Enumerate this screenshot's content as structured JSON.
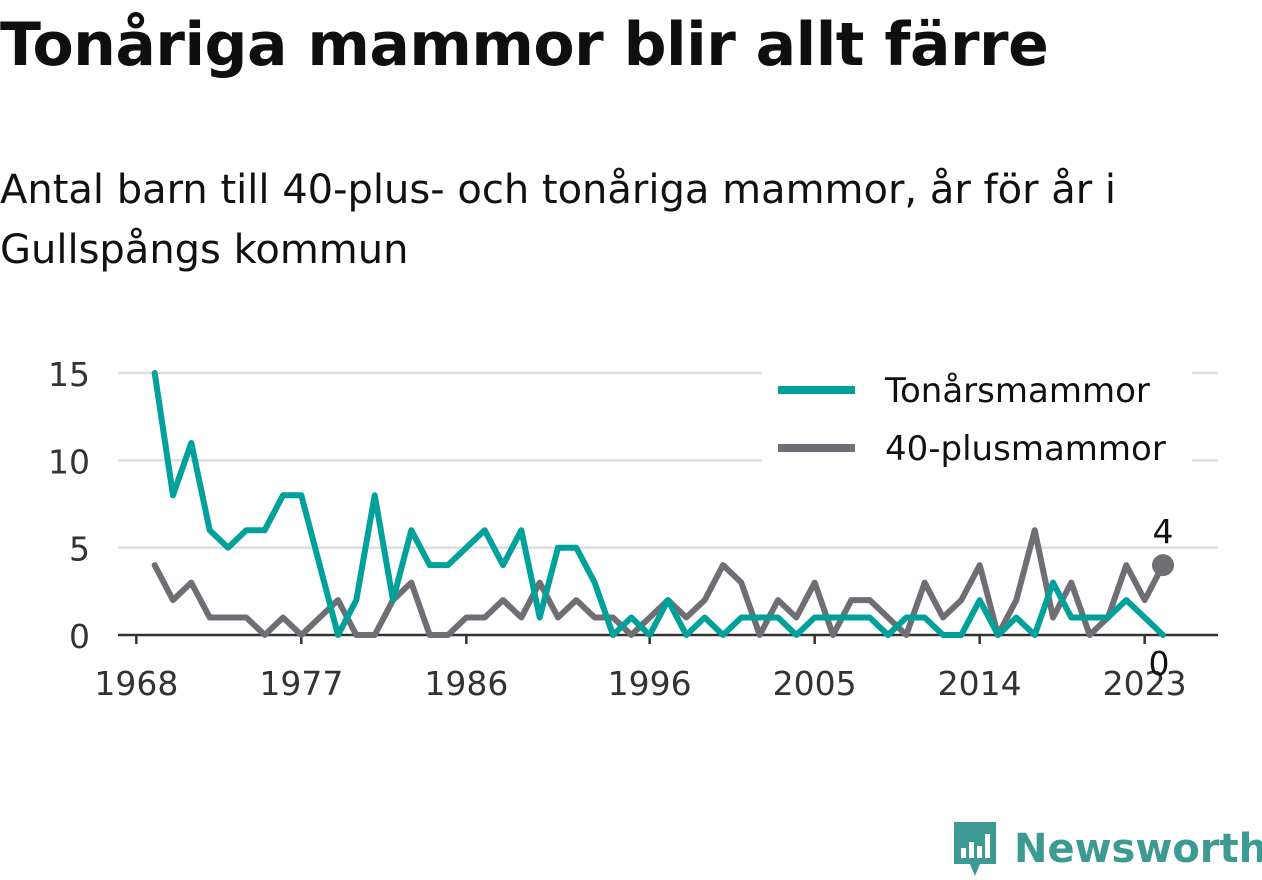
{
  "header": {
    "title": "Tonåriga mammor blir allt färre",
    "subtitle": "Antal barn till 40-plus- och tonåriga mammor, år för år i Gullspångs kommun"
  },
  "branding": {
    "name": "Newsworthy",
    "icon": "newsworthy-logo-icon",
    "color": "#3d9a93"
  },
  "chart_data": {
    "type": "line",
    "title": "Tonåriga mammor blir allt färre",
    "subtitle": "Antal barn till 40-plus- och tonåriga mammor, år för år i Gullspångs kommun",
    "xlabel": "",
    "ylabel": "",
    "x_ticks": [
      "1968",
      "1977",
      "1986",
      "1996",
      "2005",
      "2014",
      "2023"
    ],
    "y_ticks": [
      "0",
      "5",
      "10",
      "15"
    ],
    "xlim": [
      1967,
      2027
    ],
    "ylim": [
      0,
      15
    ],
    "grid": true,
    "legend_position": "top-right",
    "x": [
      1969,
      1970,
      1971,
      1972,
      1973,
      1974,
      1975,
      1976,
      1977,
      1978,
      1979,
      1980,
      1981,
      1982,
      1983,
      1984,
      1985,
      1986,
      1987,
      1988,
      1989,
      1990,
      1991,
      1992,
      1993,
      1994,
      1995,
      1996,
      1997,
      1998,
      1999,
      2000,
      2001,
      2002,
      2003,
      2004,
      2005,
      2006,
      2007,
      2008,
      2009,
      2010,
      2011,
      2012,
      2013,
      2014,
      2015,
      2016,
      2017,
      2018,
      2019,
      2020,
      2021,
      2022,
      2023,
      2024
    ],
    "series": [
      {
        "name": "Tonårsmammor",
        "color": "#00a19a",
        "values": [
          15,
          8,
          11,
          6,
          5,
          6,
          6,
          8,
          8,
          4,
          0,
          2,
          8,
          2,
          6,
          4,
          4,
          5,
          6,
          4,
          6,
          1,
          5,
          5,
          3,
          0,
          1,
          0,
          2,
          0,
          1,
          0,
          1,
          1,
          1,
          0,
          1,
          1,
          1,
          1,
          0,
          1,
          1,
          0,
          0,
          2,
          0,
          1,
          0,
          3,
          1,
          1,
          1,
          2,
          1,
          0
        ],
        "end_label": "0"
      },
      {
        "name": "40-plusmammor",
        "color": "#6f6e74",
        "values": [
          4,
          2,
          3,
          1,
          1,
          1,
          0,
          1,
          0,
          1,
          2,
          0,
          0,
          2,
          3,
          0,
          0,
          1,
          1,
          2,
          1,
          3,
          1,
          2,
          1,
          1,
          0,
          1,
          2,
          1,
          2,
          4,
          3,
          0,
          2,
          1,
          3,
          0,
          2,
          2,
          1,
          0,
          3,
          1,
          2,
          4,
          0,
          2,
          6,
          1,
          3,
          0,
          1,
          4,
          2,
          4
        ],
        "end_label": "4"
      }
    ]
  }
}
